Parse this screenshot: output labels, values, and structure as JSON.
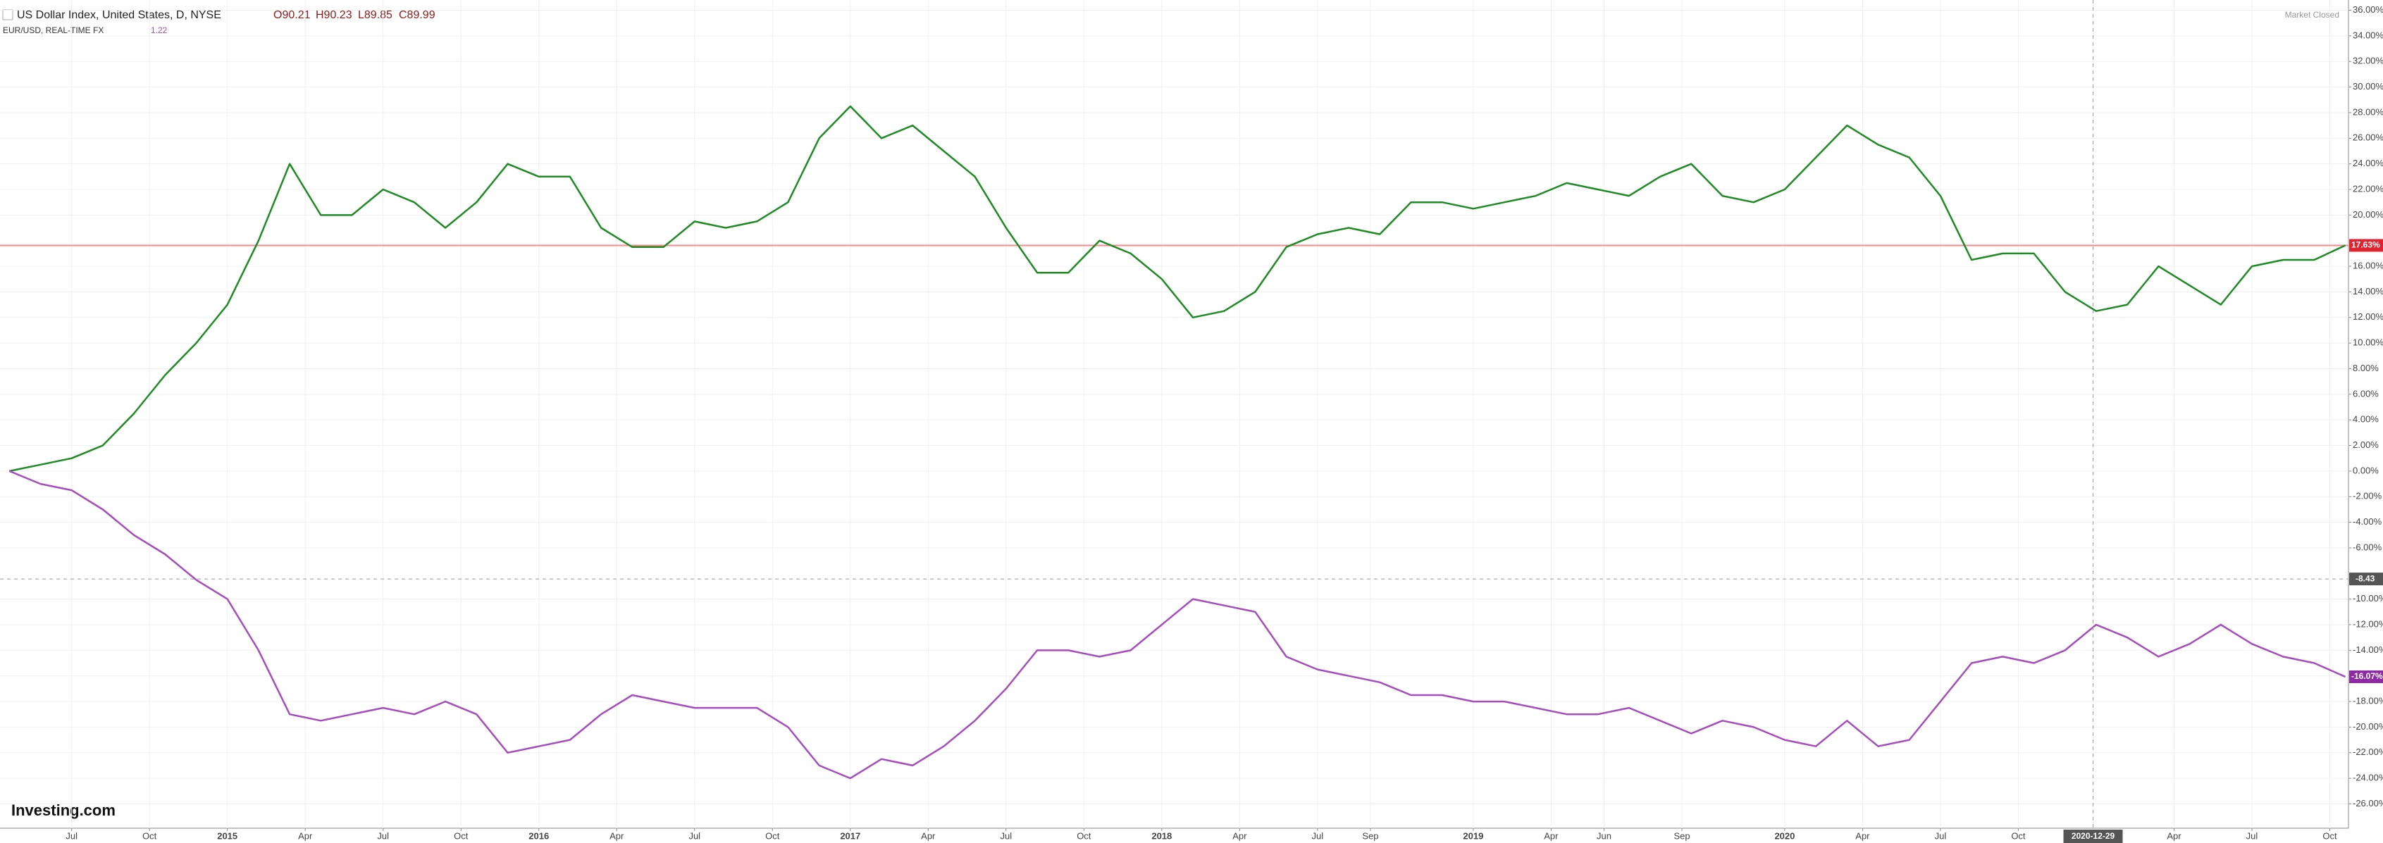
{
  "header": {
    "title": "US Dollar Index, United States, D, NYSE",
    "open": "O90.21",
    "high": "H90.23",
    "low": "L89.85",
    "close": "C89.99",
    "compare": "EUR/USD, REAL-TIME FX",
    "compare_value": "1.22",
    "status": "Market Closed",
    "logo": "Investing.com"
  },
  "chart_data": {
    "type": "line",
    "x": [
      2014.3,
      2014.4,
      2014.5,
      2014.6,
      2014.7,
      2014.8,
      2014.9,
      2015.0,
      2015.1,
      2015.2,
      2015.3,
      2015.4,
      2015.5,
      2015.6,
      2015.7,
      2015.8,
      2015.9,
      2016.0,
      2016.1,
      2016.2,
      2016.3,
      2016.4,
      2016.5,
      2016.6,
      2016.7,
      2016.8,
      2016.9,
      2017.0,
      2017.1,
      2017.2,
      2017.3,
      2017.4,
      2017.5,
      2017.6,
      2017.7,
      2017.8,
      2017.9,
      2018.0,
      2018.1,
      2018.2,
      2018.3,
      2018.4,
      2018.5,
      2018.6,
      2018.7,
      2018.8,
      2018.9,
      2019.0,
      2019.1,
      2019.2,
      2019.3,
      2019.4,
      2019.5,
      2019.6,
      2019.7,
      2019.8,
      2019.9,
      2020.0,
      2020.1,
      2020.2,
      2020.3,
      2020.4,
      2020.5,
      2020.6,
      2020.7,
      2020.8,
      2020.9,
      2021.0,
      2021.1,
      2021.2,
      2021.3,
      2021.4,
      2021.5,
      2021.6,
      2021.7,
      2021.8
    ],
    "series": [
      {
        "name": "US Dollar Index",
        "color": "#1f8b24",
        "last_label": "17.63%",
        "label_color": "#e0232e",
        "values": [
          0,
          0.5,
          1,
          2,
          4.5,
          7.5,
          10,
          13,
          18,
          24,
          20,
          20,
          22,
          21,
          19,
          21,
          24,
          23,
          23,
          19,
          17.5,
          17.5,
          19.5,
          19,
          19.5,
          21,
          26,
          28.5,
          26,
          27,
          25,
          23,
          19,
          15.5,
          15.5,
          18,
          17,
          15,
          12,
          12.5,
          14,
          17.5,
          18.5,
          19,
          18.5,
          21,
          21,
          20.5,
          21,
          21.5,
          22.5,
          22,
          21.5,
          23,
          24,
          21.5,
          21,
          22,
          24.5,
          27,
          25.5,
          24.5,
          21.5,
          16.5,
          17,
          17,
          14,
          12.5,
          13,
          16,
          14.5,
          13,
          16,
          16.5,
          16.5,
          17.63
        ]
      },
      {
        "name": "EUR/USD",
        "color": "#a64dbd",
        "last_label": "-16.07%",
        "label_color": "#8e2aa3",
        "values": [
          0,
          -1,
          -1.5,
          -3,
          -5,
          -6.5,
          -8.5,
          -10,
          -14,
          -19,
          -19.5,
          -19,
          -18.5,
          -19,
          -18,
          -19,
          -22,
          -21.5,
          -21,
          -19,
          -17.5,
          -18,
          -18.5,
          -18.5,
          -18.5,
          -20,
          -23,
          -24,
          -22.5,
          -23,
          -21.5,
          -19.5,
          -17,
          -14,
          -14,
          -14.5,
          -14,
          -12,
          -10,
          -10.5,
          -11,
          -14.5,
          -15.5,
          -16,
          -16.5,
          -17.5,
          -17.5,
          -18,
          -18,
          -18.5,
          -19,
          -19,
          -18.5,
          -19.5,
          -20.5,
          -19.5,
          -20,
          -21,
          -21.5,
          -19.5,
          -21.5,
          -21,
          -18,
          -15,
          -14.5,
          -15,
          -14,
          -12,
          -13,
          -14.5,
          -13.5,
          -12,
          -13.5,
          -14.5,
          -15,
          -16.07
        ]
      }
    ],
    "xlim": [
      2014.27,
      2021.81
    ],
    "ylim": [
      -27.9,
      36.8
    ],
    "xticks": [
      {
        "value": 2014.5,
        "label": "Jul"
      },
      {
        "value": 2014.75,
        "label": "Oct"
      },
      2015,
      {
        "value": 2015.25,
        "label": "Apr"
      },
      {
        "value": 2015.5,
        "label": "Jul"
      },
      {
        "value": 2015.75,
        "label": "Oct"
      },
      2016,
      {
        "value": 2016.25,
        "label": "Apr"
      },
      {
        "value": 2016.5,
        "label": "Jul"
      },
      {
        "value": 2016.75,
        "label": "Oct"
      },
      2017,
      {
        "value": 2017.25,
        "label": "Apr"
      },
      {
        "value": 2017.5,
        "label": "Jul"
      },
      {
        "value": 2017.75,
        "label": "Oct"
      },
      2018,
      {
        "value": 2018.25,
        "label": "Apr"
      },
      {
        "value": 2018.5,
        "label": "Jul"
      },
      {
        "value": 2018.67,
        "label": "Sep"
      },
      2019,
      {
        "value": 2019.25,
        "label": "Apr"
      },
      {
        "value": 2019.42,
        "label": "Jun"
      },
      {
        "value": 2019.67,
        "label": "Sep"
      },
      2020,
      {
        "value": 2020.25,
        "label": "Apr"
      },
      {
        "value": 2020.5,
        "label": "Jul"
      },
      {
        "value": 2020.75,
        "label": "Oct"
      },
      {
        "value": 2021.25,
        "label": "Apr"
      },
      {
        "value": 2021.5,
        "label": "Jul"
      },
      {
        "value": 2021.75,
        "label": "Oct"
      }
    ],
    "yticks": [
      {
        "value": -26,
        "label": "-26.00%"
      },
      {
        "value": -24,
        "label": "-24.00%"
      },
      {
        "value": -22,
        "label": "-22.00%"
      },
      {
        "value": -20,
        "label": "-20.00%"
      },
      {
        "value": -18,
        "label": "-18.00%"
      },
      {
        "value": -16,
        "label": "-16.00%"
      },
      {
        "value": -14,
        "label": "-14.00%"
      },
      {
        "value": -12,
        "label": "-12.00%"
      },
      {
        "value": -10,
        "label": "-10.00%"
      },
      {
        "value": -6,
        "label": "-6.00%"
      },
      {
        "value": -4,
        "label": "-4.00%"
      },
      {
        "value": -2,
        "label": "-2.00%"
      },
      {
        "value": 0,
        "label": "0.00%"
      },
      {
        "value": 2,
        "label": "2.00%"
      },
      {
        "value": 4,
        "label": "4.00%"
      },
      {
        "value": 6,
        "label": "6.00%"
      },
      {
        "value": 8,
        "label": "8.00%"
      },
      {
        "value": 10,
        "label": "10.00%"
      },
      {
        "value": 12,
        "label": "12.00%"
      },
      {
        "value": 14,
        "label": "14.00%"
      },
      {
        "value": 16,
        "label": "16.00%"
      },
      {
        "value": 20,
        "label": "20.00%"
      },
      {
        "value": 22,
        "label": "22.00%"
      },
      {
        "value": 24,
        "label": "24.00%"
      },
      {
        "value": 26,
        "label": "26.00%"
      },
      {
        "value": 28,
        "label": "28.00%"
      },
      {
        "value": 30,
        "label": "30.00%"
      },
      {
        "value": 32,
        "label": "32.00%"
      },
      {
        "value": 34,
        "label": "34.00%"
      },
      {
        "value": 36,
        "label": "36.00%"
      }
    ],
    "crosshair": {
      "x": 2020.99,
      "x_label": "2020-12-29",
      "y": -8.43
    },
    "grid": true
  }
}
